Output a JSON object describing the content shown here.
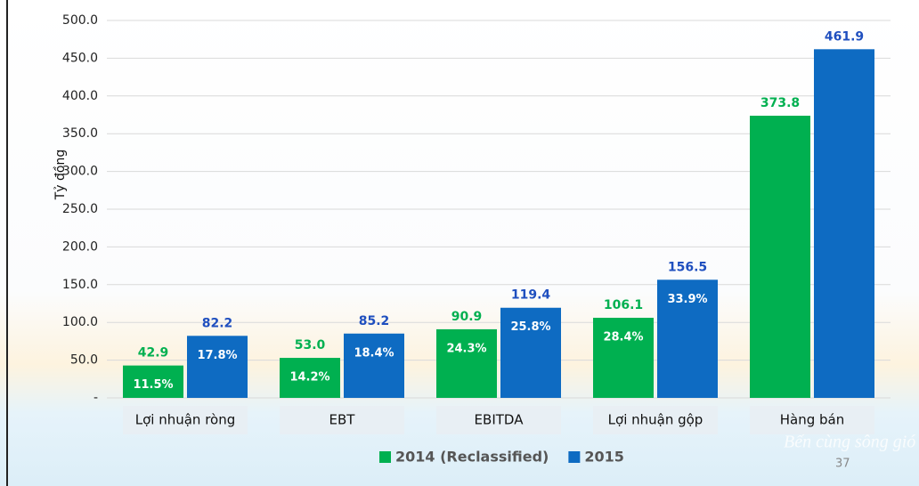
{
  "chart_data": {
    "type": "bar",
    "y_label": "Tỷ đồng",
    "categories": [
      "Lợi nhuận ròng",
      "EBT",
      "EBITDA",
      "Lợi nhuận gộp",
      "Hàng bán"
    ],
    "series": [
      {
        "name": "2014 (Reclassified)",
        "color": "#00b050",
        "values": [
          42.9,
          53.0,
          90.9,
          106.1,
          373.8
        ],
        "value_labels": [
          "42.9",
          "53.0",
          "90.9",
          "106.1",
          "373.8"
        ],
        "inner_labels": [
          "11.5%",
          "14.2%",
          "24.3%",
          "28.4%",
          null
        ]
      },
      {
        "name": "2015",
        "color": "#0e6bc2",
        "values": [
          82.2,
          85.2,
          119.4,
          156.5,
          461.9
        ],
        "value_labels": [
          "82.2",
          "85.2",
          "119.4",
          "156.5",
          "461.9"
        ],
        "inner_labels": [
          "17.8%",
          "18.4%",
          "25.8%",
          "33.9%",
          null
        ]
      }
    ],
    "ylim": [
      0,
      500
    ],
    "yticks": [
      {
        "value": 0,
        "label": "-"
      },
      {
        "value": 50,
        "label": "50.0"
      },
      {
        "value": 100,
        "label": "100.0"
      },
      {
        "value": 150,
        "label": "150.0"
      },
      {
        "value": 200,
        "label": "200.0"
      },
      {
        "value": 250,
        "label": "250.0"
      },
      {
        "value": 300,
        "label": "300.0"
      },
      {
        "value": 350,
        "label": "350.0"
      },
      {
        "value": 400,
        "label": "400.0"
      },
      {
        "value": 450,
        "label": "450.0"
      },
      {
        "value": 500,
        "label": "500.0"
      }
    ],
    "grid": true,
    "legend": "bottom"
  },
  "footer": {
    "slogan": "Bến cùng sông gió",
    "page_number": "37"
  }
}
